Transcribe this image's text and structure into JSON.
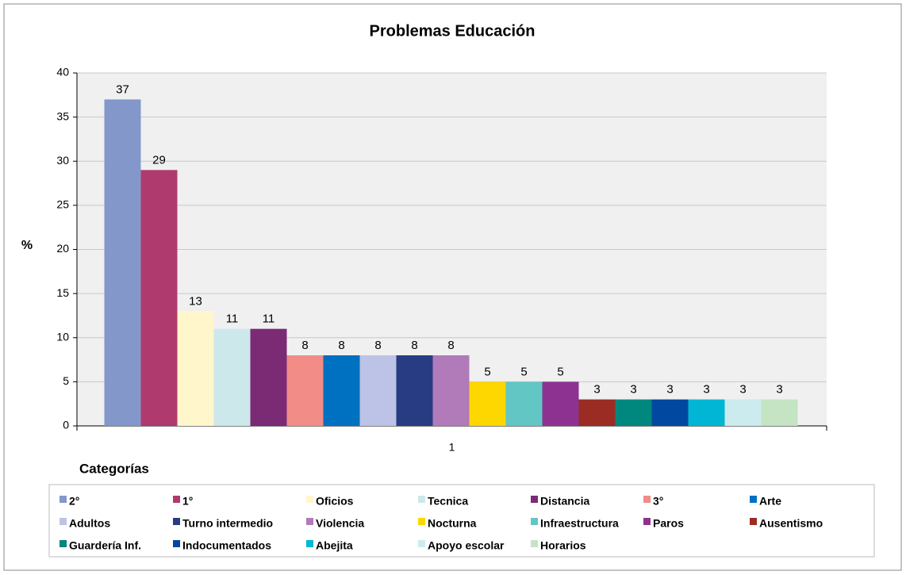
{
  "chart_data": {
    "type": "bar",
    "title": "Problemas Educación",
    "y_label": "%",
    "legend_title": "Categorías",
    "categories": [
      "1"
    ],
    "ylim": [
      0,
      40
    ],
    "yticks": [
      0,
      5,
      10,
      15,
      20,
      25,
      30,
      35,
      40
    ],
    "grid": true,
    "series": [
      {
        "name": "2°",
        "color": "#8497CB",
        "values": [
          37
        ]
      },
      {
        "name": "1°",
        "color": "#AE3A6E",
        "values": [
          29
        ]
      },
      {
        "name": "Oficios",
        "color": "#FFF6CC",
        "values": [
          13
        ]
      },
      {
        "name": "Tecnica",
        "color": "#CCE8EA",
        "values": [
          11
        ]
      },
      {
        "name": "Distancia",
        "color": "#7B2A74",
        "values": [
          11
        ]
      },
      {
        "name": "3°",
        "color": "#F28C86",
        "values": [
          8
        ]
      },
      {
        "name": "Arte",
        "color": "#0070C0",
        "values": [
          8
        ]
      },
      {
        "name": "Adultos",
        "color": "#BCC3E6",
        "values": [
          8
        ]
      },
      {
        "name": "Turno intermedio",
        "color": "#283C84",
        "values": [
          8
        ]
      },
      {
        "name": "Violencia",
        "color": "#B07BB8",
        "values": [
          8
        ]
      },
      {
        "name": "Nocturna",
        "color": "#FFD700",
        "values": [
          5
        ]
      },
      {
        "name": "Infraestructura",
        "color": "#62C6C4",
        "values": [
          5
        ]
      },
      {
        "name": "Paros",
        "color": "#8E3292",
        "values": [
          5
        ]
      },
      {
        "name": "Ausentismo",
        "color": "#9B2C23",
        "values": [
          3
        ]
      },
      {
        "name": "Guardería Inf.",
        "color": "#00877E",
        "values": [
          3
        ]
      },
      {
        "name": "Indocumentados",
        "color": "#0048A0",
        "values": [
          3
        ]
      },
      {
        "name": "Abejita",
        "color": "#00B6D4",
        "values": [
          3
        ]
      },
      {
        "name": "Apoyo escolar",
        "color": "#CCEBEE",
        "values": [
          3
        ]
      },
      {
        "name": "Horarios",
        "color": "#C4E4C4",
        "values": [
          3
        ]
      }
    ]
  }
}
